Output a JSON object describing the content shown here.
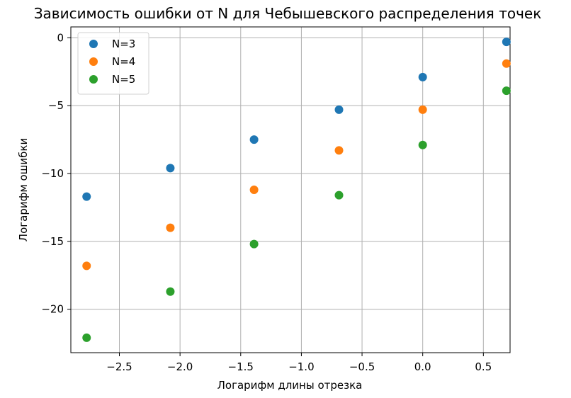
{
  "chart_data": {
    "type": "scatter",
    "title": "Зависимость ошибки от N для Чебышевского распределения точек",
    "xlabel": "Логарифм длины отрезка",
    "ylabel": "Логарифм ошибки",
    "xlim": [
      -2.9,
      0.72
    ],
    "ylim": [
      -23.2,
      0.8
    ],
    "xticks": [
      -2.5,
      -2.0,
      -1.5,
      -1.0,
      -0.5,
      0.0,
      0.5
    ],
    "xtick_labels": [
      "−2.5",
      "−2.0",
      "−1.5",
      "−1.0",
      "−0.5",
      "0.0",
      "0.5"
    ],
    "yticks": [
      0,
      -5,
      -10,
      -15,
      -20
    ],
    "ytick_labels": [
      "0",
      "−5",
      "−10",
      "−15",
      "−20"
    ],
    "grid": true,
    "legend_position": "top-left",
    "x": [
      -2.77,
      -2.08,
      -1.39,
      -0.69,
      0.0,
      0.69
    ],
    "series": [
      {
        "name": "N=3",
        "color": "#1f77b4",
        "values": [
          -11.7,
          -9.6,
          -7.5,
          -5.3,
          -2.9,
          -0.3
        ]
      },
      {
        "name": "N=4",
        "color": "#ff7f0e",
        "values": [
          -16.8,
          -14.0,
          -11.2,
          -8.3,
          -5.3,
          -1.9
        ]
      },
      {
        "name": "N=5",
        "color": "#2ca02c",
        "values": [
          -22.1,
          -18.7,
          -15.2,
          -11.6,
          -7.9,
          -3.9
        ]
      }
    ]
  }
}
